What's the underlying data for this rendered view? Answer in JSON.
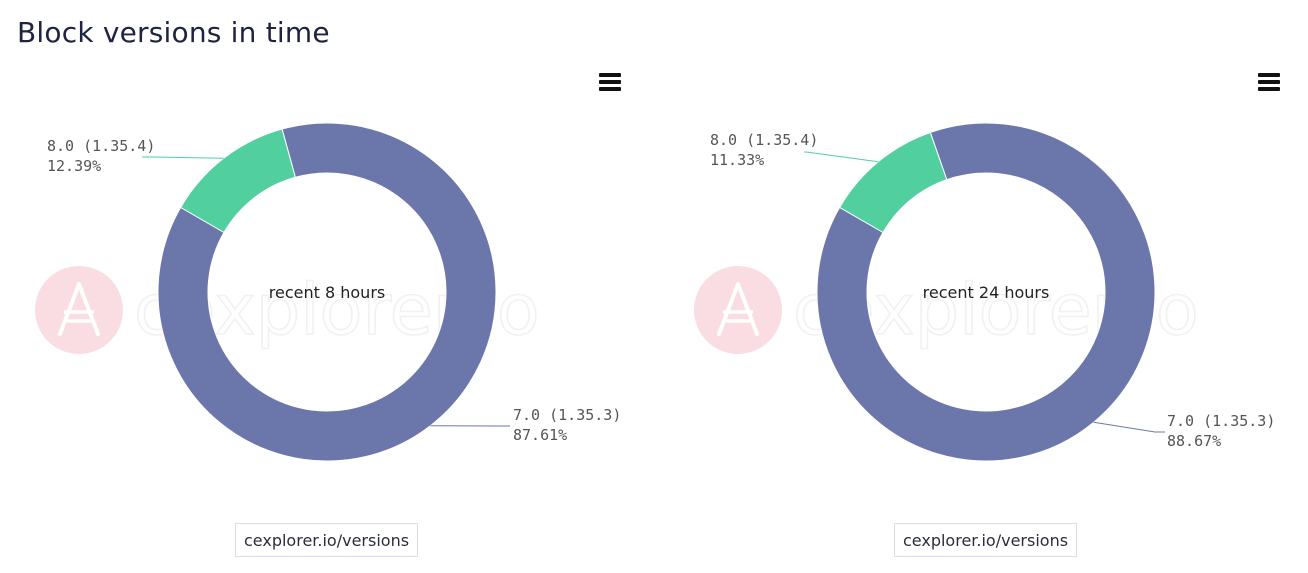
{
  "page": {
    "title": "Block versions in time"
  },
  "watermark": {
    "text": "cexplorer.io",
    "icon": "cardano-ada-icon"
  },
  "colors": {
    "primary_segment": "#6b77ab",
    "secondary_segment": "#52cf9e",
    "watermark": "#f9dde3"
  },
  "chart_data": [
    {
      "type": "pie",
      "center_label": "recent 8 hours",
      "source_label": "cexplorer.io/versions",
      "slices": [
        {
          "version": "8.0",
          "node": "(1.35.4)",
          "percent_label": "12.39%",
          "value": 12.39,
          "color": "#52cf9e"
        },
        {
          "version": "7.0",
          "node": "(1.35.3)",
          "percent_label": "87.61%",
          "value": 87.61,
          "color": "#6b77ab"
        }
      ]
    },
    {
      "type": "pie",
      "center_label": "recent 24 hours",
      "source_label": "cexplorer.io/versions",
      "slices": [
        {
          "version": "8.0",
          "node": "(1.35.4)",
          "percent_label": "11.33%",
          "value": 11.33,
          "color": "#52cf9e"
        },
        {
          "version": "7.0",
          "node": "(1.35.3)",
          "percent_label": "88.67%",
          "value": 88.67,
          "color": "#6b77ab"
        }
      ]
    }
  ]
}
